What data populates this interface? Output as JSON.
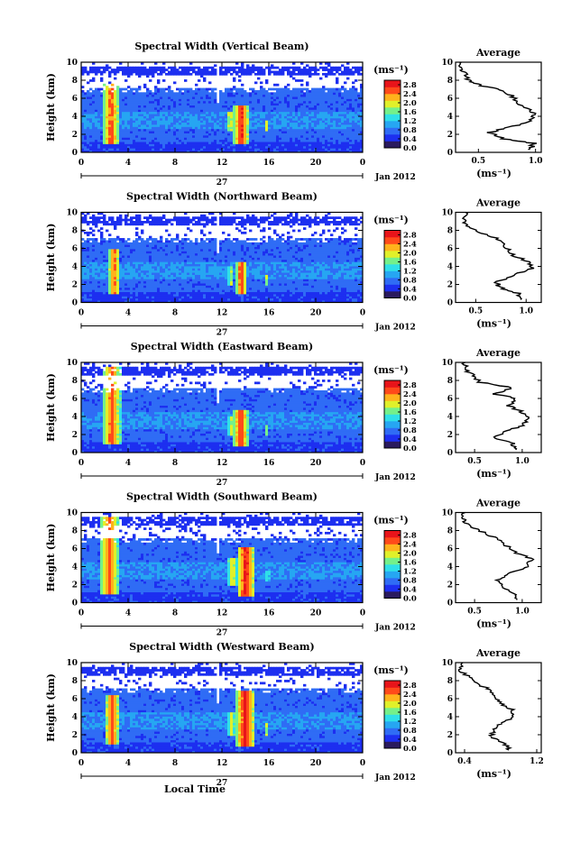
{
  "chart_data": {
    "type": "heatmap",
    "xlabel": "Local Time",
    "date_label": "Jan 2012",
    "day_label": "27",
    "x_ticks": [
      "0",
      "4",
      "8",
      "12",
      "16",
      "20",
      "0"
    ],
    "xlim": [
      0,
      24
    ],
    "ylabel": "Height (km)",
    "y_ticks": [
      "0",
      "2",
      "4",
      "6",
      "8",
      "10"
    ],
    "ylim": [
      0,
      10
    ],
    "colorbar": {
      "unit": "(ms⁻¹)",
      "ticks": [
        "0.0",
        "0.4",
        "0.8",
        "1.2",
        "1.6",
        "2.0",
        "2.4",
        "2.8"
      ],
      "range": [
        0,
        3.0
      ],
      "colors": [
        "#2a1a5e",
        "#1d2ff0",
        "#2f6cf5",
        "#26a6f2",
        "#2fe0e8",
        "#74f08a",
        "#e0f02a",
        "#ffb21c",
        "#ff4a1a",
        "#e8141a"
      ]
    },
    "average_axis": {
      "title": "Average",
      "xlabel": "(ms⁻¹)",
      "y_ticks": [
        "0",
        "2",
        "4",
        "6",
        "8",
        "10"
      ]
    },
    "panels": [
      {
        "title": "Spectral Width (Vertical Beam)",
        "avg_ticks": [
          "0.5",
          "1.0"
        ],
        "avg_xlim": [
          0.3,
          1.05
        ],
        "features": [
          {
            "t0": 1.8,
            "t1": 3.3,
            "h0": 1.0,
            "h1": 7.6,
            "value": 2.6
          },
          {
            "t0": 13.0,
            "t1": 14.3,
            "h0": 1.0,
            "h1": 5.3,
            "value": 2.8
          },
          {
            "t0": 12.4,
            "t1": 13.0,
            "h0": 2.5,
            "h1": 4.5,
            "value": 2.2
          },
          {
            "t0": 15.6,
            "t1": 16.0,
            "h0": 2.5,
            "h1": 3.5,
            "value": 2.0
          }
        ],
        "average_profile": [
          {
            "h": 0.3,
            "v": 0.95
          },
          {
            "h": 1.0,
            "v": 0.98
          },
          {
            "h": 1.5,
            "v": 0.72
          },
          {
            "h": 2.2,
            "v": 0.6
          },
          {
            "h": 2.8,
            "v": 0.78
          },
          {
            "h": 3.5,
            "v": 0.97
          },
          {
            "h": 4.2,
            "v": 1.0
          },
          {
            "h": 5.0,
            "v": 0.9
          },
          {
            "h": 6.0,
            "v": 0.82
          },
          {
            "h": 6.8,
            "v": 0.72
          },
          {
            "h": 7.5,
            "v": 0.5
          },
          {
            "h": 8.0,
            "v": 0.42
          },
          {
            "h": 8.8,
            "v": 0.4
          },
          {
            "h": 9.4,
            "v": 0.33
          },
          {
            "h": 10.0,
            "v": 0.35
          }
        ]
      },
      {
        "title": "Spectral Width (Northward Beam)",
        "avg_ticks": [
          "0.5",
          "1.0"
        ],
        "avg_xlim": [
          0.3,
          1.15
        ],
        "features": [
          {
            "t0": 2.3,
            "t1": 3.3,
            "h0": 1.0,
            "h1": 6.0,
            "value": 2.6
          },
          {
            "t0": 13.2,
            "t1": 14.1,
            "h0": 1.0,
            "h1": 4.6,
            "value": 2.8
          },
          {
            "t0": 12.5,
            "t1": 13.0,
            "h0": 2.0,
            "h1": 4.0,
            "value": 2.0
          },
          {
            "t0": 15.6,
            "t1": 16.0,
            "h0": 2.0,
            "h1": 3.0,
            "value": 1.8
          }
        ],
        "average_profile": [
          {
            "h": 0.3,
            "v": 0.95
          },
          {
            "h": 1.0,
            "v": 0.93
          },
          {
            "h": 1.6,
            "v": 0.75
          },
          {
            "h": 2.2,
            "v": 0.7
          },
          {
            "h": 3.0,
            "v": 0.88
          },
          {
            "h": 3.8,
            "v": 1.05
          },
          {
            "h": 4.5,
            "v": 1.02
          },
          {
            "h": 5.2,
            "v": 0.88
          },
          {
            "h": 6.0,
            "v": 0.82
          },
          {
            "h": 7.0,
            "v": 0.72
          },
          {
            "h": 7.8,
            "v": 0.55
          },
          {
            "h": 8.5,
            "v": 0.42
          },
          {
            "h": 9.2,
            "v": 0.38
          },
          {
            "h": 10.0,
            "v": 0.4
          }
        ]
      },
      {
        "title": "Spectral Width (Eastward Beam)",
        "avg_ticks": [
          "0.5",
          "1.0"
        ],
        "avg_xlim": [
          0.3,
          1.2
        ],
        "features": [
          {
            "t0": 1.8,
            "t1": 3.4,
            "h0": 1.0,
            "h1": 9.5,
            "value": 2.6
          },
          {
            "t0": 13.0,
            "t1": 14.2,
            "h0": 0.8,
            "h1": 4.8,
            "value": 2.8
          },
          {
            "t0": 12.5,
            "t1": 13.0,
            "h0": 2.0,
            "h1": 4.0,
            "value": 2.0
          },
          {
            "t0": 15.6,
            "t1": 16.0,
            "h0": 2.0,
            "h1": 3.2,
            "value": 1.8
          }
        ],
        "average_profile": [
          {
            "h": 0.3,
            "v": 0.95
          },
          {
            "h": 1.0,
            "v": 0.9
          },
          {
            "h": 1.6,
            "v": 0.72
          },
          {
            "h": 2.3,
            "v": 0.8
          },
          {
            "h": 3.0,
            "v": 1.0
          },
          {
            "h": 3.8,
            "v": 1.08
          },
          {
            "h": 4.5,
            "v": 1.0
          },
          {
            "h": 5.2,
            "v": 0.85
          },
          {
            "h": 6.0,
            "v": 0.95
          },
          {
            "h": 6.5,
            "v": 0.7
          },
          {
            "h": 7.2,
            "v": 0.9
          },
          {
            "h": 7.8,
            "v": 0.55
          },
          {
            "h": 8.5,
            "v": 0.5
          },
          {
            "h": 9.2,
            "v": 0.4
          },
          {
            "h": 10.0,
            "v": 0.4
          }
        ]
      },
      {
        "title": "Spectral Width (Southward Beam)",
        "avg_ticks": [
          "0.5",
          "1.0"
        ],
        "avg_xlim": [
          0.3,
          1.2
        ],
        "features": [
          {
            "t0": 1.6,
            "t1": 3.2,
            "h0": 1.0,
            "h1": 9.5,
            "value": 2.6
          },
          {
            "t0": 13.3,
            "t1": 14.8,
            "h0": 0.8,
            "h1": 6.3,
            "value": 2.9
          },
          {
            "t0": 12.5,
            "t1": 13.3,
            "h0": 2.0,
            "h1": 5.0,
            "value": 2.2
          },
          {
            "t0": 15.7,
            "t1": 16.1,
            "h0": 2.5,
            "h1": 3.6,
            "value": 1.8
          }
        ],
        "average_profile": [
          {
            "h": 0.3,
            "v": 0.95
          },
          {
            "h": 1.0,
            "v": 0.9
          },
          {
            "h": 1.8,
            "v": 0.8
          },
          {
            "h": 2.5,
            "v": 0.75
          },
          {
            "h": 3.2,
            "v": 0.85
          },
          {
            "h": 4.0,
            "v": 1.05
          },
          {
            "h": 4.8,
            "v": 1.1
          },
          {
            "h": 5.5,
            "v": 0.95
          },
          {
            "h": 6.2,
            "v": 0.85
          },
          {
            "h": 7.0,
            "v": 0.75
          },
          {
            "h": 7.8,
            "v": 0.6
          },
          {
            "h": 8.5,
            "v": 0.45
          },
          {
            "h": 9.2,
            "v": 0.38
          },
          {
            "h": 10.0,
            "v": 0.4
          }
        ]
      },
      {
        "title": "Spectral Width (Westward Beam)",
        "avg_ticks": [
          "0.4",
          "1.2"
        ],
        "avg_xlim": [
          0.3,
          1.25
        ],
        "features": [
          {
            "t0": 2.0,
            "t1": 3.3,
            "h0": 1.0,
            "h1": 6.5,
            "value": 2.6
          },
          {
            "t0": 13.2,
            "t1": 14.8,
            "h0": 0.8,
            "h1": 7.0,
            "value": 2.9
          },
          {
            "t0": 12.5,
            "t1": 13.2,
            "h0": 2.0,
            "h1": 4.5,
            "value": 2.0
          },
          {
            "t0": 15.6,
            "t1": 16.0,
            "h0": 2.0,
            "h1": 3.4,
            "value": 1.8
          }
        ],
        "average_profile": [
          {
            "h": 0.3,
            "v": 0.9
          },
          {
            "h": 1.0,
            "v": 0.85
          },
          {
            "h": 1.8,
            "v": 0.7
          },
          {
            "h": 2.5,
            "v": 0.72
          },
          {
            "h": 3.2,
            "v": 0.8
          },
          {
            "h": 4.0,
            "v": 0.95
          },
          {
            "h": 4.8,
            "v": 0.92
          },
          {
            "h": 5.5,
            "v": 0.8
          },
          {
            "h": 6.2,
            "v": 0.72
          },
          {
            "h": 7.0,
            "v": 0.68
          },
          {
            "h": 7.6,
            "v": 0.55
          },
          {
            "h": 8.4,
            "v": 0.45
          },
          {
            "h": 9.2,
            "v": 0.35
          },
          {
            "h": 10.0,
            "v": 0.38
          }
        ]
      }
    ]
  }
}
